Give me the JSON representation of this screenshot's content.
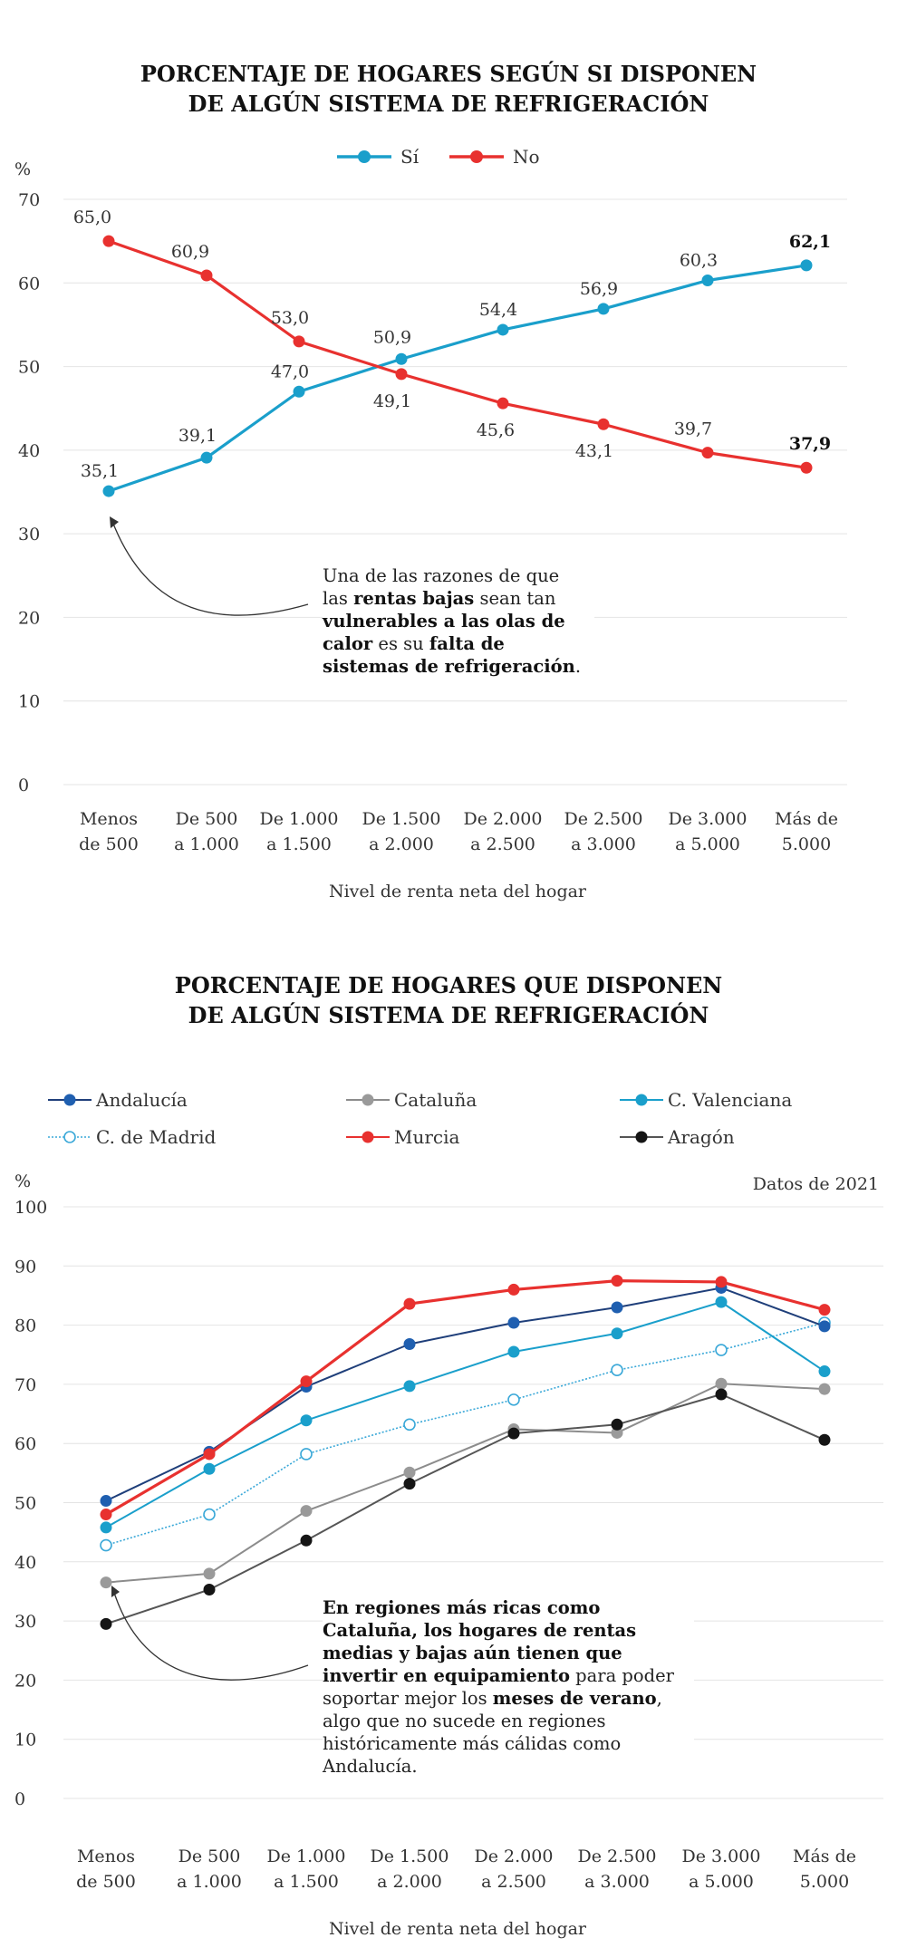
{
  "chart_data": [
    {
      "type": "line",
      "title": [
        "PORCENTAJE DE HOGARES  SEGÚN SI DISPONEN",
        "DE ALGÚN  SISTEMA DE  REFRIGERACIÓN"
      ],
      "ylabel": "%",
      "xlabel": "Nivel de renta neta del hogar",
      "ylim": [
        0,
        70
      ],
      "yticks": [
        "0",
        "10",
        "20",
        "30",
        "40",
        "50",
        "60",
        "70"
      ],
      "categories": [
        [
          "Menos",
          "de 500"
        ],
        [
          "De 500",
          "a 1.000"
        ],
        [
          "De 1.000",
          "a 1.500"
        ],
        [
          "De 1.500",
          "a 2.000"
        ],
        [
          "De 2.000",
          "a 2.500"
        ],
        [
          "De 2.500",
          "a 3.000"
        ],
        [
          "De 3.000",
          "a 5.000"
        ],
        [
          "Más de",
          "5.000"
        ]
      ],
      "series": [
        {
          "name": "Sí",
          "color": "#1a9fcb",
          "values": [
            35.1,
            39.1,
            47.0,
            50.9,
            54.4,
            56.9,
            60.3,
            62.1
          ],
          "labels": [
            "35,1",
            "39,1",
            "47,0",
            "50,9",
            "54,4",
            "56,9",
            "60,3",
            "62,1"
          ]
        },
        {
          "name": "No",
          "color": "#e8312f",
          "values": [
            65.0,
            60.9,
            53.0,
            49.1,
            45.6,
            43.1,
            39.7,
            37.9
          ],
          "labels": [
            "65,0",
            "60,9",
            "53,0",
            "49,1",
            "45,6",
            "43,1",
            "39,7",
            "37,9"
          ]
        }
      ],
      "legend_position": "top",
      "grid": true,
      "annotation": [
        "Una de las razones de que",
        "las ",
        "rentas bajas",
        " sean tan",
        "vulnerables a las olas de",
        "calor",
        " es su ",
        "falta de",
        "sistemas de refrigeración",
        "."
      ]
    },
    {
      "type": "line",
      "title": [
        "PORCENTAJE DE HOGARES QUE DISPONEN",
        "DE ALGÚN  SISTEMA DE  REFRIGERACIÓN"
      ],
      "ylabel": "%",
      "xlabel": "Nivel de renta neta del hogar",
      "note": "Datos de 2021",
      "ylim": [
        0,
        100
      ],
      "yticks": [
        "0",
        "10",
        "20",
        "30",
        "40",
        "50",
        "60",
        "70",
        "80",
        "90",
        "100"
      ],
      "categories": [
        [
          "Menos",
          "de 500"
        ],
        [
          "De 500",
          "a 1.000"
        ],
        [
          "De 1.000",
          "a 1.500"
        ],
        [
          "De 1.500",
          "a 2.000"
        ],
        [
          "De 2.000",
          "a 2.500"
        ],
        [
          "De 2.500",
          "a 3.000"
        ],
        [
          "De 3.000",
          "a 5.000"
        ],
        [
          "Más de",
          "5.000"
        ]
      ],
      "series": [
        {
          "name": "Andalucía",
          "color": "#1f3f7a",
          "marker": "#1f5fb0",
          "values": [
            50.3,
            58.6,
            69.6,
            76.8,
            80.4,
            83.0,
            86.3,
            79.8
          ]
        },
        {
          "name": "Cataluña",
          "color": "#8c8c8c",
          "marker": "#9a9a9a",
          "values": [
            36.5,
            38.0,
            48.6,
            55.1,
            62.4,
            61.8,
            70.1,
            69.2
          ]
        },
        {
          "name": "C. Valenciana",
          "color": "#1a9fcb",
          "marker": "#1a9fcb",
          "values": [
            45.8,
            55.7,
            63.9,
            69.7,
            75.5,
            78.6,
            83.9,
            72.2
          ]
        },
        {
          "name": "C. de Madrid",
          "color": "#3aa8d8",
          "marker": "#3aa8d8",
          "hollow": true,
          "dotted": true,
          "values": [
            42.8,
            48.0,
            58.2,
            63.2,
            67.4,
            72.4,
            75.8,
            80.4
          ]
        },
        {
          "name": "Murcia",
          "color": "#e8312f",
          "marker": "#e8312f",
          "values": [
            48.0,
            58.2,
            70.5,
            83.6,
            86.0,
            87.5,
            87.3,
            82.6
          ]
        },
        {
          "name": "Aragón",
          "color": "#555555",
          "marker": "#151515",
          "values": [
            29.5,
            35.3,
            43.6,
            53.2,
            61.7,
            63.2,
            68.3,
            60.6
          ]
        }
      ],
      "legend_position": "top",
      "grid": true,
      "annotation": [
        "En regiones más ricas como",
        "Cataluña, los hogares de rentas",
        "medias y bajas aún tienen que",
        "invertir en equipamiento",
        " para poder",
        "soportar mejor los ",
        "meses de verano",
        ",",
        "algo que no sucede en regiones",
        "históricamente más cálidas como",
        "Andalucía."
      ]
    }
  ]
}
